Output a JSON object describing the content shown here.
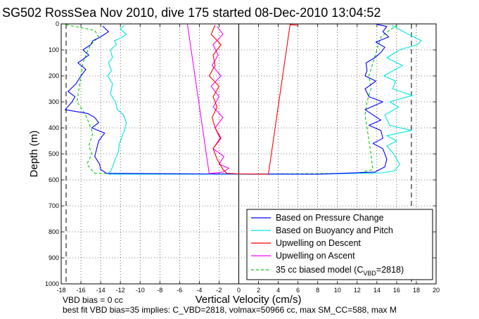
{
  "chart_data": {
    "type": "line",
    "title": "SG502 RossSea Nov 2010, dive 175 started 08-Dec-2010 13:04:52",
    "xlabel": "Vertical Velocity (cm/s)",
    "ylabel": "Depth (m)",
    "xlim": [
      -18,
      20
    ],
    "ylim": [
      1000,
      0
    ],
    "y_reversed": true,
    "xticks": [
      -18,
      -16,
      -14,
      -12,
      -10,
      -8,
      -6,
      -4,
      -2,
      0,
      2,
      4,
      6,
      8,
      10,
      12,
      14,
      16,
      18,
      20
    ],
    "yticks": [
      0,
      100,
      200,
      300,
      400,
      500,
      600,
      700,
      800,
      900,
      1000
    ],
    "grid": true,
    "legend_position": "bottom-right",
    "reference_lines": {
      "zero_line_x": 0,
      "dashed_limits_x": [
        -17.5,
        17.5
      ]
    },
    "series": [
      {
        "name": "Based on Pressure Change",
        "color": "#0000ff",
        "style": "solid",
        "points": [
          [
            -13.8,
            8
          ],
          [
            -13.2,
            30
          ],
          [
            -14.0,
            50
          ],
          [
            -14.8,
            65
          ],
          [
            -15.0,
            80
          ],
          [
            -15.8,
            100
          ],
          [
            -15.2,
            120
          ],
          [
            -16.3,
            150
          ],
          [
            -15.5,
            175
          ],
          [
            -16.0,
            200
          ],
          [
            -16.5,
            230
          ],
          [
            -17.3,
            260
          ],
          [
            -16.6,
            280
          ],
          [
            -16.9,
            300
          ],
          [
            -17.6,
            330
          ],
          [
            -15.3,
            345
          ],
          [
            -14.6,
            360
          ],
          [
            -14.2,
            380
          ],
          [
            -14.9,
            400
          ],
          [
            -13.6,
            420
          ],
          [
            -14.2,
            450
          ],
          [
            -14.4,
            480
          ],
          [
            -14.6,
            510
          ],
          [
            -14.1,
            540
          ],
          [
            -14.0,
            560
          ],
          [
            -13.4,
            575
          ],
          [
            -4,
            577
          ],
          [
            8,
            578
          ],
          [
            13.8,
            570
          ],
          [
            14.8,
            550
          ],
          [
            15.0,
            520
          ],
          [
            14.6,
            480
          ],
          [
            13.6,
            460
          ],
          [
            14.6,
            440
          ],
          [
            14.4,
            410
          ],
          [
            13.2,
            390
          ],
          [
            14.4,
            370
          ],
          [
            12.8,
            330
          ],
          [
            14.6,
            300
          ],
          [
            13.2,
            280
          ],
          [
            12.8,
            250
          ],
          [
            13.9,
            220
          ],
          [
            12.8,
            200
          ],
          [
            13.0,
            180
          ],
          [
            12.9,
            150
          ],
          [
            13.8,
            130
          ],
          [
            14.4,
            110
          ],
          [
            14.8,
            90
          ],
          [
            13.9,
            70
          ],
          [
            15.2,
            50
          ],
          [
            14.6,
            30
          ],
          [
            15.0,
            10
          ],
          [
            14.0,
            2
          ]
        ]
      },
      {
        "name": "Based on Buoyancy and Pitch",
        "color": "#00e5e5",
        "style": "solid",
        "points": [
          [
            -11.6,
            5
          ],
          [
            -12.0,
            20
          ],
          [
            -11.4,
            40
          ],
          [
            -12.0,
            55
          ],
          [
            -12.6,
            65
          ],
          [
            -12.4,
            80
          ],
          [
            -13.0,
            100
          ],
          [
            -12.8,
            130
          ],
          [
            -13.2,
            150
          ],
          [
            -12.9,
            180
          ],
          [
            -13.3,
            200
          ],
          [
            -12.8,
            230
          ],
          [
            -13.0,
            270
          ],
          [
            -12.5,
            300
          ],
          [
            -12.3,
            330
          ],
          [
            -11.7,
            350
          ],
          [
            -11.4,
            380
          ],
          [
            -11.6,
            410
          ],
          [
            -11.8,
            430
          ],
          [
            -12.1,
            460
          ],
          [
            -12.2,
            490
          ],
          [
            -12.6,
            530
          ],
          [
            -12.9,
            560
          ],
          [
            -13.2,
            578
          ],
          [
            -4,
            578
          ],
          [
            8,
            578
          ],
          [
            14.5,
            573
          ],
          [
            15.8,
            565
          ],
          [
            16.3,
            540
          ],
          [
            15.7,
            500
          ],
          [
            15.0,
            470
          ],
          [
            16.0,
            450
          ],
          [
            15.0,
            430
          ],
          [
            17.5,
            410
          ],
          [
            15.3,
            390
          ],
          [
            14.8,
            350
          ],
          [
            16.2,
            320
          ],
          [
            15.3,
            300
          ],
          [
            17.6,
            275
          ],
          [
            15.6,
            250
          ],
          [
            15.9,
            220
          ],
          [
            14.7,
            200
          ],
          [
            16.6,
            160
          ],
          [
            15.0,
            130
          ],
          [
            16.3,
            100
          ],
          [
            18.1,
            80
          ],
          [
            18.5,
            65
          ],
          [
            17.2,
            40
          ],
          [
            16.2,
            20
          ],
          [
            15.5,
            5
          ]
        ]
      },
      {
        "name": "Upwelling on Descent",
        "color": "#ff0000",
        "style": "solid",
        "points": [
          [
            -2.4,
            5
          ],
          [
            -2.8,
            40
          ],
          [
            -1.8,
            80
          ],
          [
            -2.6,
            120
          ],
          [
            -2.4,
            160
          ],
          [
            -3.0,
            200
          ],
          [
            -2.0,
            240
          ],
          [
            -2.6,
            280
          ],
          [
            -2.2,
            320
          ],
          [
            -2.7,
            360
          ],
          [
            -2.4,
            400
          ],
          [
            -1.8,
            440
          ],
          [
            -2.6,
            480
          ],
          [
            -2.2,
            520
          ],
          [
            -1.6,
            560
          ],
          [
            -1.2,
            575
          ],
          [
            0,
            577
          ],
          [
            3,
            578
          ],
          [
            5.2,
            3
          ],
          [
            6.0,
            5
          ]
        ]
      },
      {
        "name": "Upwelling on Ascent",
        "color": "#ff00ff",
        "style": "solid",
        "points": [
          [
            -5.2,
            2
          ],
          [
            -3.0,
            576
          ],
          [
            -1.6,
            570
          ],
          [
            -1.0,
            555
          ],
          [
            -2.0,
            540
          ],
          [
            -1.5,
            510
          ],
          [
            -2.6,
            480
          ],
          [
            -1.9,
            440
          ],
          [
            -2.4,
            400
          ],
          [
            -1.6,
            360
          ],
          [
            -2.6,
            320
          ],
          [
            -2.0,
            280
          ],
          [
            -2.8,
            240
          ],
          [
            -1.8,
            200
          ],
          [
            -2.7,
            160
          ],
          [
            -2.1,
            120
          ],
          [
            -2.6,
            80
          ],
          [
            -1.6,
            40
          ],
          [
            -2.2,
            10
          ]
        ]
      },
      {
        "name": "35 cc biased model (C_VBD=2818)",
        "color": "#00cc00",
        "style": "dashed",
        "points": [
          [
            -17.5,
            3
          ],
          [
            -14.6,
            25
          ],
          [
            -14.2,
            50
          ],
          [
            -15.0,
            80
          ],
          [
            -15.4,
            110
          ],
          [
            -15.8,
            150
          ],
          [
            -16.0,
            200
          ],
          [
            -16.2,
            250
          ],
          [
            -16.4,
            300
          ],
          [
            -15.6,
            345
          ],
          [
            -15.2,
            380
          ],
          [
            -14.8,
            420
          ],
          [
            -15.2,
            470
          ],
          [
            -14.9,
            500
          ],
          [
            -15.4,
            540
          ],
          [
            -14.6,
            575
          ],
          [
            0,
            578
          ],
          [
            12.0,
            575
          ],
          [
            13.6,
            560
          ],
          [
            13.4,
            500
          ],
          [
            13.2,
            450
          ],
          [
            13.0,
            400
          ],
          [
            12.8,
            350
          ],
          [
            13.0,
            300
          ],
          [
            13.4,
            250
          ],
          [
            13.2,
            200
          ],
          [
            13.6,
            150
          ],
          [
            14.0,
            100
          ],
          [
            14.4,
            50
          ],
          [
            16.0,
            5
          ]
        ]
      }
    ]
  },
  "legend": {
    "items": [
      {
        "label": "Based on Pressure Change",
        "color": "#0000ff",
        "dash": false
      },
      {
        "label": "Based on Buoyancy and Pitch",
        "color": "#00e5e5",
        "dash": false
      },
      {
        "label": "Upwelling on Descent",
        "color": "#ff0000",
        "dash": false
      },
      {
        "label": "Upwelling on Ascent",
        "color": "#ff00ff",
        "dash": false
      }
    ],
    "model_label_prefix": "35 cc biased model (C",
    "model_label_sub": "VBD",
    "model_label_suffix": "=2818)",
    "model_color": "#00cc00"
  },
  "notes": {
    "vbd_bias": "VBD bias = 0 cc",
    "best_fit": "best fit VBD bias=35 implies: C_VBD=2818, volmax=50966 cc, max SM_CC=588, max M"
  }
}
